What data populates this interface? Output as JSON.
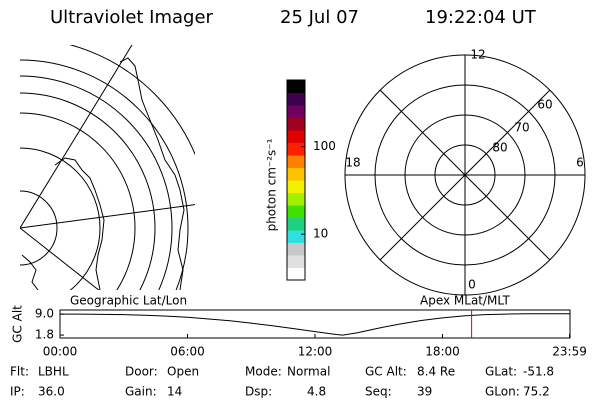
{
  "header": {
    "instrument": "Ultraviolet Imager",
    "date": "25 Jul 07",
    "time": "19:22:04 UT"
  },
  "colorbar": {
    "label": "photon cm⁻²s⁻¹",
    "log": true,
    "clim": [
      3,
      575
    ],
    "ticks": [
      10,
      100
    ],
    "colors": [
      "#ffffff",
      "#e0e0e0",
      "#c8c8c8",
      "#30e0e0",
      "#20d080",
      "#40e000",
      "#a0f000",
      "#f0f000",
      "#ffc000",
      "#ff8000",
      "#ff2000",
      "#e00000",
      "#a00020",
      "#700060",
      "#400050",
      "#000000"
    ]
  },
  "polar": {
    "mlt_labels": [
      "12",
      "6",
      "0",
      "18"
    ],
    "lat_labels": [
      "60",
      "70",
      "80"
    ]
  },
  "altitude_panel": {
    "left_title": "Geographic Lat/Lon",
    "right_title": "Apex MLat/MLT",
    "ylabel": "GC Alt",
    "xlim": [
      0,
      24
    ],
    "ylim": [
      0.8,
      10.4
    ],
    "yticks": [
      {
        "value": 9.0,
        "label": "9.0"
      },
      {
        "value": 1.8,
        "label": "1.8"
      }
    ],
    "xticks": [
      {
        "value": 0,
        "label": "00:00"
      },
      {
        "value": 6,
        "label": "06:00"
      },
      {
        "value": 12,
        "label": "12:00"
      },
      {
        "value": 18,
        "label": "18:00"
      },
      {
        "value": 23.98,
        "label": "23:59"
      }
    ],
    "x": [
      0,
      1,
      2,
      3,
      4,
      5,
      6,
      7,
      8,
      9,
      10,
      11,
      12,
      13,
      13.3,
      14,
      15,
      16,
      17,
      18,
      19,
      20,
      21,
      22,
      23,
      24
    ],
    "values": [
      9.0,
      9.0,
      8.9,
      8.8,
      8.6,
      8.3,
      7.9,
      7.3,
      6.7,
      5.9,
      5.0,
      4.0,
      3.0,
      2.0,
      1.8,
      2.6,
      4.2,
      5.6,
      6.8,
      7.7,
      8.4,
      8.8,
      9.0,
      9.1,
      9.1,
      9.1
    ],
    "current_hour": 19.37
  },
  "footer": [
    [
      {
        "label": "Flt:",
        "value": "LBHL"
      },
      {
        "label": "Door:",
        "value": "Open"
      },
      {
        "label": "Mode:",
        "value": "Normal"
      },
      {
        "label": "GC Alt:",
        "value": "8.4 Re"
      },
      {
        "label": "GLat:",
        "value": "-51.8"
      }
    ],
    [
      {
        "label": "IP:",
        "value": "36.0"
      },
      {
        "label": "Gain:",
        "value": "14"
      },
      {
        "label": "Dsp:",
        "value": "4.8"
      },
      {
        "label": "Seq:",
        "value": "39"
      },
      {
        "label": "GLon:",
        "value": "75.2"
      }
    ]
  ]
}
